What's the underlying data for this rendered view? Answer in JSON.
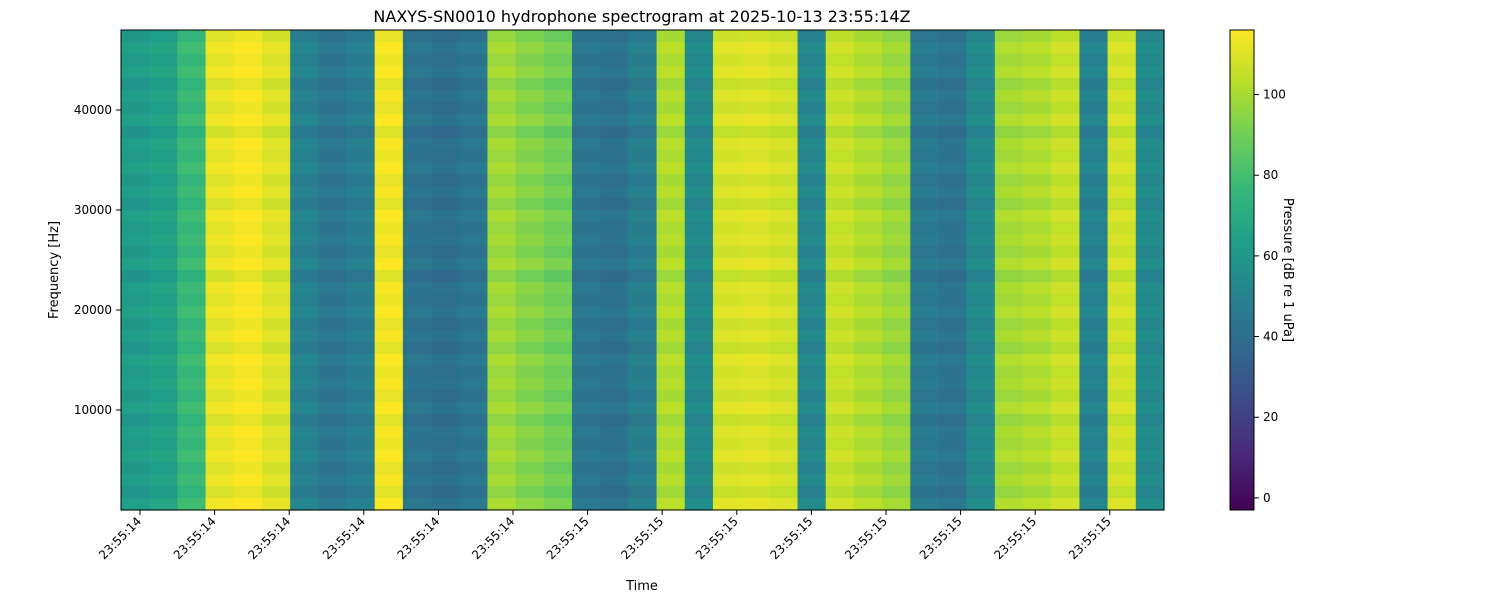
{
  "chart_data": {
    "type": "heatmap",
    "title": "NAXYS-SN0010 hydrophone spectrogram at 2025-10-13 23:55:14Z",
    "xlabel": "Time",
    "ylabel": "Frequency [Hz]",
    "colorbar_label": "Pressure [dB re 1 uPa]",
    "colormap": "viridis",
    "x_tick_labels": [
      "23:55:14",
      "23:55:14",
      "23:55:14",
      "23:55:14",
      "23:55:14",
      "23:55:14",
      "23:55:15",
      "23:55:15",
      "23:55:15",
      "23:55:15",
      "23:55:15",
      "23:55:15",
      "23:55:15",
      "23:55:15"
    ],
    "y_ticks": [
      10000,
      20000,
      30000,
      40000
    ],
    "y_tick_labels": [
      "10000",
      "20000",
      "30000",
      "40000"
    ],
    "ylim": [
      0,
      48000
    ],
    "color_range": [
      -3,
      116
    ],
    "colorbar_ticks": [
      0,
      20,
      40,
      60,
      80,
      100
    ],
    "colorbar_tick_labels": [
      "0",
      "20",
      "40",
      "60",
      "80",
      "100"
    ],
    "time_columns_db": [
      60,
      63,
      75,
      110,
      113,
      108,
      48,
      42,
      46,
      112,
      41,
      39,
      42,
      97,
      92,
      88,
      42,
      40,
      46,
      100,
      52,
      107,
      108,
      106,
      50,
      104,
      100,
      96,
      44,
      41,
      52,
      98,
      100,
      104,
      48,
      106,
      52
    ],
    "frequency_rows_db": [
      0,
      4,
      1,
      4,
      -1,
      3,
      0,
      4,
      -2,
      3,
      1,
      4,
      0,
      3,
      -1,
      4,
      1,
      3,
      0,
      4,
      -2,
      3,
      1,
      4,
      0,
      3,
      -1,
      4,
      1,
      3,
      0,
      4,
      -1,
      3,
      1,
      4,
      0,
      3,
      -1,
      4
    ]
  }
}
